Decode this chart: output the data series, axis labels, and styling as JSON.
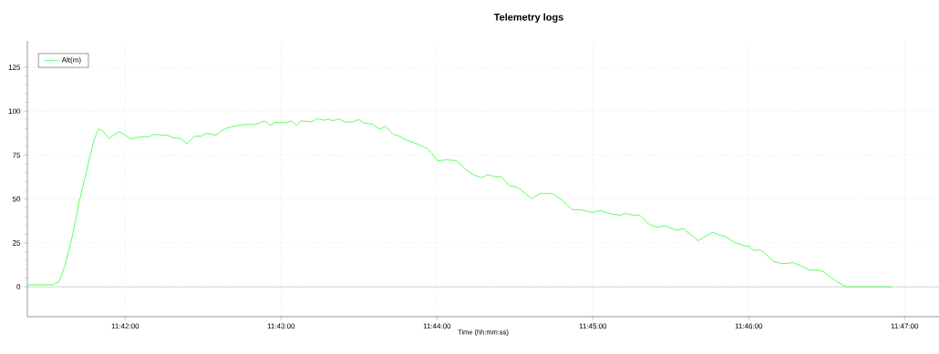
{
  "chart_data": {
    "type": "line",
    "title": "Telemetry logs",
    "xlabel": "Time (hh:mm:ss)",
    "x": [
      11.68954,
      11.6923,
      11.69295,
      11.69361,
      11.69442,
      11.69507,
      11.69604,
      11.69669,
      11.69717,
      11.69766,
      11.69825,
      11.69929,
      11.69994,
      11.70058,
      11.70156,
      11.70253,
      11.70302,
      11.70448,
      11.70514,
      11.70595,
      11.7066,
      11.70741,
      11.70806,
      11.70871,
      11.70969,
      11.71066,
      11.71131,
      11.71261,
      11.71391,
      11.71488,
      11.71554,
      11.71602,
      11.71715,
      11.71781,
      11.71829,
      11.71878,
      11.71992,
      11.72057,
      11.72122,
      11.72171,
      11.72219,
      11.72285,
      11.72349,
      11.72431,
      11.72495,
      11.7256,
      11.72641,
      11.72723,
      11.72782,
      11.72869,
      11.72918,
      11.72999,
      11.73113,
      11.73226,
      11.73275,
      11.7334,
      11.73421,
      11.73535,
      11.73649,
      11.7373,
      11.73811,
      11.73876,
      11.73957,
      11.74022,
      11.74103,
      11.74201,
      11.74283,
      11.74347,
      11.74444,
      11.74575,
      11.74673,
      11.7478,
      11.74867,
      11.74997,
      11.75078,
      11.75175,
      11.7529,
      11.75355,
      11.75419,
      11.75501,
      11.75598,
      11.75679,
      11.7577,
      11.75891,
      11.75965,
      11.76128,
      11.76281,
      11.76362,
      11.7641,
      11.76524,
      11.76622,
      11.76671,
      11.76719,
      11.76784,
      11.76832,
      11.7693,
      11.77012,
      11.77076,
      11.77141,
      11.77239,
      11.7732,
      11.77417,
      11.77466,
      11.77597,
      11.7771,
      11.78197
    ],
    "series": [
      {
        "name": "Alt(m)",
        "color": "#33ff33",
        "values": [
          1.2,
          1.2,
          3,
          13,
          30.5,
          48,
          70,
          84,
          90,
          88.4,
          84.4,
          88.4,
          86.7,
          84.1,
          85.4,
          85.4,
          86.8,
          86.3,
          84.9,
          84.4,
          81.5,
          85.8,
          85.8,
          87.5,
          86.3,
          90.1,
          91,
          92.4,
          92.4,
          94.5,
          91.9,
          93.6,
          93.4,
          94.5,
          91.9,
          94.5,
          93.9,
          95.8,
          94.8,
          95.6,
          94.5,
          95.6,
          93.9,
          93.9,
          95.3,
          93.1,
          92.7,
          89.8,
          91.4,
          86.7,
          86.2,
          83.7,
          81.5,
          78.9,
          76.3,
          71.7,
          72.3,
          72,
          66.5,
          63.7,
          62.1,
          63.9,
          62.7,
          62.7,
          57.8,
          56.4,
          53,
          50.2,
          53.3,
          53,
          49.2,
          43.9,
          43.9,
          42.3,
          43.5,
          41.8,
          40.8,
          41.8,
          40.9,
          40.9,
          35.7,
          34,
          34.7,
          32.3,
          33.1,
          26.3,
          31.1,
          29.2,
          28.8,
          25.1,
          23.3,
          23.1,
          20.6,
          21.1,
          19.4,
          14.5,
          13.3,
          13.3,
          13.8,
          11.6,
          9.5,
          9.5,
          8.5,
          3.3,
          0,
          0
        ]
      }
    ],
    "xlim": [
      11.68954,
      11.78701
    ],
    "ylim": [
      -17,
      140
    ],
    "xticks": [
      {
        "value": 11.7,
        "label": "11:42:00"
      },
      {
        "value": 11.716667,
        "label": "11:43:00"
      },
      {
        "value": 11.733333,
        "label": "11:44:00"
      },
      {
        "value": 11.75,
        "label": "11:45:00"
      },
      {
        "value": 11.766667,
        "label": "11:46:00"
      },
      {
        "value": 11.783333,
        "label": "11:47:00"
      }
    ],
    "yticks": [
      0,
      25,
      50,
      75,
      100,
      125
    ],
    "grid": true,
    "legend": "top left",
    "ref_lines": [
      {
        "axis": "y",
        "value": 0,
        "color": "#c0c0c0"
      }
    ]
  }
}
